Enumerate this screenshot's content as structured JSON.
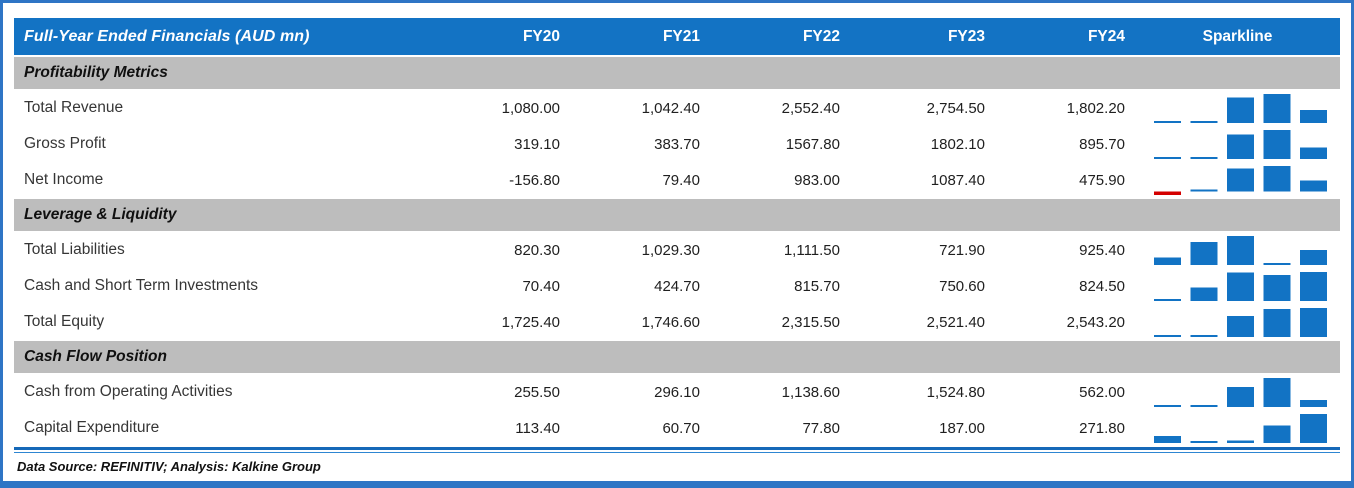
{
  "table": {
    "title": "Full-Year Ended Financials (AUD mn)",
    "columns": [
      "FY20",
      "FY21",
      "FY22",
      "FY23",
      "FY24"
    ],
    "sparkline_header": "Sparkline",
    "sections": [
      {
        "label": "Profitability Metrics",
        "rows": [
          {
            "label": "Total Revenue",
            "display": [
              "1,080.00",
              "1,042.40",
              "2,552.40",
              "2,754.50",
              "1,802.20"
            ],
            "values": [
              1080.0,
              1042.4,
              2552.4,
              2754.5,
              1802.2
            ]
          },
          {
            "label": "Gross Profit",
            "display": [
              "319.10",
              "383.70",
              "1567.80",
              "1802.10",
              "895.70"
            ],
            "values": [
              319.1,
              383.7,
              1567.8,
              1802.1,
              895.7
            ]
          },
          {
            "label": "Net Income",
            "display": [
              "-156.80",
              "79.40",
              "983.00",
              "1087.40",
              "475.90"
            ],
            "values": [
              -156.8,
              79.4,
              983.0,
              1087.4,
              475.9
            ]
          }
        ]
      },
      {
        "label": "Leverage & Liquidity",
        "rows": [
          {
            "label": "Total Liabilities",
            "display": [
              "820.30",
              "1,029.30",
              "1,111.50",
              "721.90",
              "925.40"
            ],
            "values": [
              820.3,
              1029.3,
              1111.5,
              721.9,
              925.4
            ]
          },
          {
            "label": "Cash and Short Term Investments",
            "display": [
              "70.40",
              "424.70",
              "815.70",
              "750.60",
              "824.50"
            ],
            "values": [
              70.4,
              424.7,
              815.7,
              750.6,
              824.5
            ]
          },
          {
            "label": "Total Equity",
            "display": [
              "1,725.40",
              "1,746.60",
              "2,315.50",
              "2,521.40",
              "2,543.20"
            ],
            "values": [
              1725.4,
              1746.6,
              2315.5,
              2521.4,
              2543.2
            ]
          }
        ]
      },
      {
        "label": "Cash Flow Position",
        "rows": [
          {
            "label": "Cash from Operating Activities",
            "display": [
              "255.50",
              "296.10",
              "1,138.60",
              "1,524.80",
              "562.00"
            ],
            "values": [
              255.5,
              296.1,
              1138.6,
              1524.8,
              562.0
            ]
          },
          {
            "label": "Capital Expenditure",
            "display": [
              "113.40",
              "60.70",
              "77.80",
              "187.00",
              "271.80"
            ],
            "values": [
              113.4,
              60.7,
              77.8,
              187.0,
              271.8
            ]
          }
        ]
      }
    ]
  },
  "footer": {
    "text": "Data Source: REFINITIV; Analysis: Kalkine Group"
  },
  "colors": {
    "header_blue": "#1373C4",
    "section_gray": "#BDBDBD",
    "bar_blue": "#1273C4",
    "negative_red": "#D40000",
    "frame_border_blue": "#2E75C5"
  },
  "chart_data": {
    "type": "table",
    "title": "Full-Year Ended Financials (AUD mn)",
    "categories": [
      "FY20",
      "FY21",
      "FY22",
      "FY23",
      "FY24"
    ],
    "series": [
      {
        "name": "Total Revenue",
        "section": "Profitability Metrics",
        "values": [
          1080.0,
          1042.4,
          2552.4,
          2754.5,
          1802.2
        ]
      },
      {
        "name": "Gross Profit",
        "section": "Profitability Metrics",
        "values": [
          319.1,
          383.7,
          1567.8,
          1802.1,
          895.7
        ]
      },
      {
        "name": "Net Income",
        "section": "Profitability Metrics",
        "values": [
          -156.8,
          79.4,
          983.0,
          1087.4,
          475.9
        ]
      },
      {
        "name": "Total Liabilities",
        "section": "Leverage & Liquidity",
        "values": [
          820.3,
          1029.3,
          1111.5,
          721.9,
          925.4
        ]
      },
      {
        "name": "Cash and Short Term Investments",
        "section": "Leverage & Liquidity",
        "values": [
          70.4,
          424.7,
          815.7,
          750.6,
          824.5
        ]
      },
      {
        "name": "Total Equity",
        "section": "Leverage & Liquidity",
        "values": [
          1725.4,
          1746.6,
          2315.5,
          2521.4,
          2543.2
        ]
      },
      {
        "name": "Cash from Operating Activities",
        "section": "Cash Flow Position",
        "values": [
          255.5,
          296.1,
          1138.6,
          1524.8,
          562.0
        ]
      },
      {
        "name": "Capital Expenditure",
        "section": "Cash Flow Position",
        "values": [
          113.4,
          60.7,
          77.8,
          187.0,
          271.8
        ]
      }
    ],
    "sparkline": {
      "type": "bar",
      "note": "per-row column sparklines, auto-scaled min..max per row, negatives in red",
      "position": "right column"
    }
  }
}
